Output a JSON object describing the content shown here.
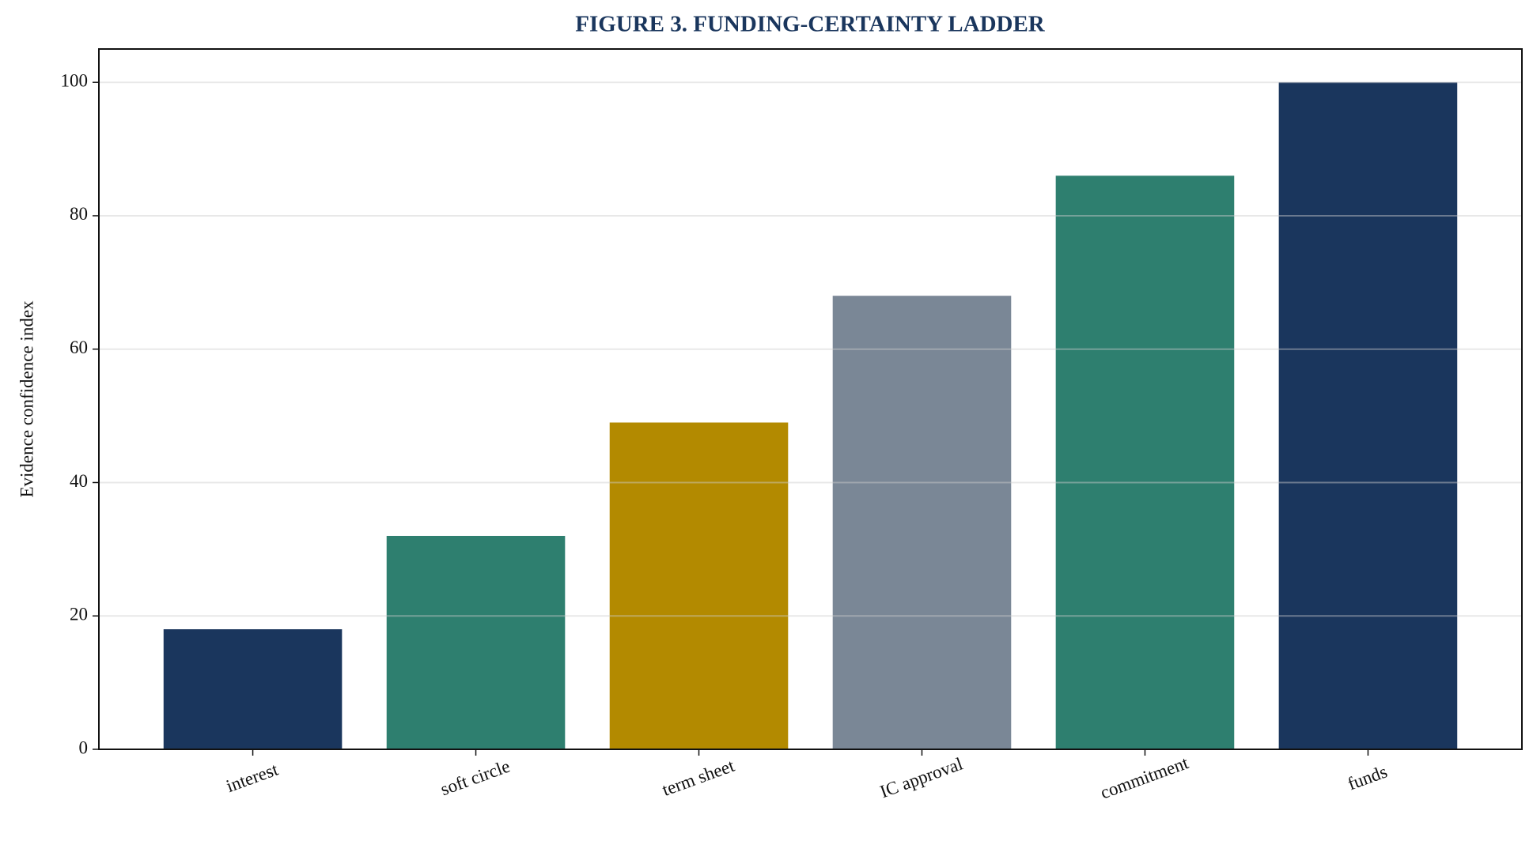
{
  "chart_data": {
    "type": "bar",
    "title": "FIGURE 3. FUNDING-CERTAINTY LADDER",
    "y_label": "Evidence confidence index",
    "categories": [
      "interest",
      "soft circle",
      "term sheet",
      "IC approval",
      "commitment",
      "funds"
    ],
    "values": [
      18,
      32,
      49,
      68,
      86,
      100
    ],
    "colors": [
      "#1a365d",
      "#2e7f6f",
      "#b38a00",
      "#7a8796",
      "#2e7f6f",
      "#1a365d"
    ],
    "ylim": [
      0,
      105
    ],
    "yticks": [
      0,
      20,
      40,
      60,
      80,
      100
    ],
    "grid": true
  }
}
